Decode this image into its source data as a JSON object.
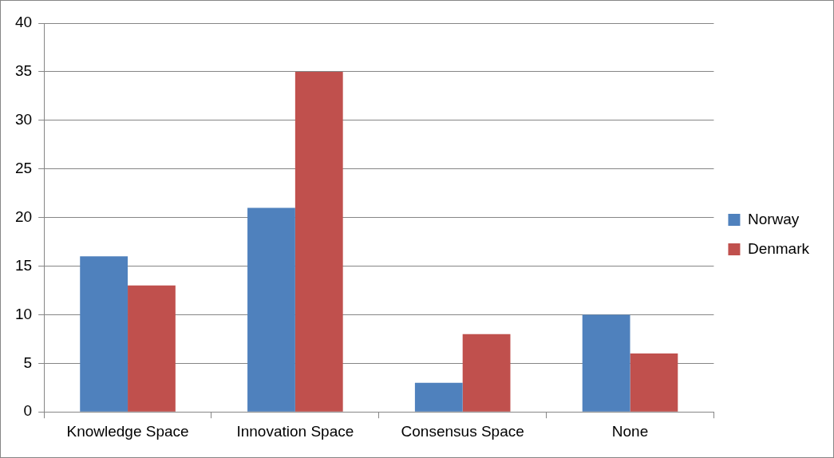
{
  "chart_data": {
    "type": "bar",
    "categories": [
      "Knowledge Space",
      "Innovation Space",
      "Consensus Space",
      "None"
    ],
    "series": [
      {
        "name": "Norway",
        "color": "#4f81bd",
        "values": [
          16,
          21,
          3,
          10
        ]
      },
      {
        "name": "Denmark",
        "color": "#c0504d",
        "values": [
          13,
          35,
          8,
          6
        ]
      }
    ],
    "ylim": [
      0,
      40
    ],
    "yticks": [
      0,
      5,
      10,
      15,
      20,
      25,
      30,
      35,
      40
    ],
    "grid": "y",
    "legend": "right"
  }
}
